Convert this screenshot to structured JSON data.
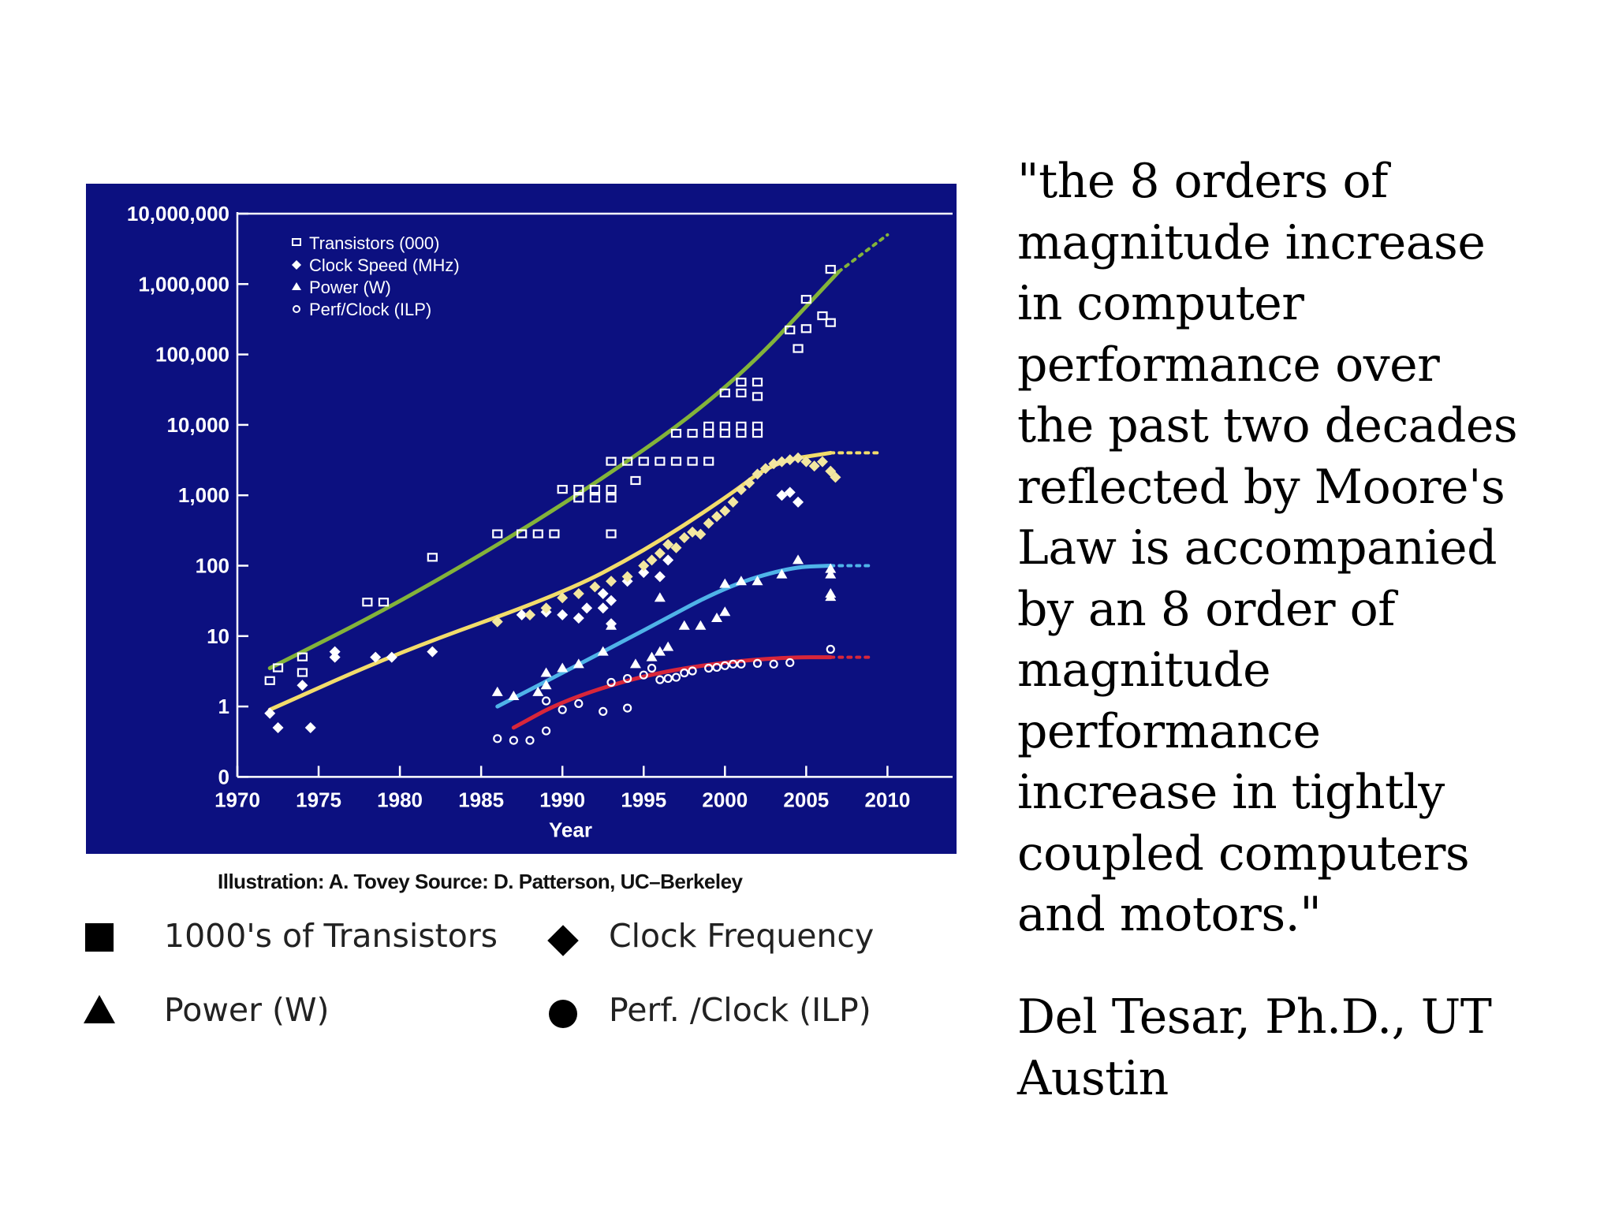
{
  "chart_data": {
    "type": "scatter",
    "title": "",
    "xlabel": "Year",
    "ylabel": "",
    "y_scale": "log",
    "xlim": [
      1970,
      2010
    ],
    "x_ticks": [
      "1970",
      "1975",
      "1980",
      "1985",
      "1990",
      "1995",
      "2000",
      "2005",
      "2010"
    ],
    "y_ticks": [
      "0",
      "1",
      "10",
      "100",
      "1,000",
      "10,000",
      "100,000",
      "1,000,000",
      "10,000,000"
    ],
    "legend": [
      "Transistors (000)",
      "Clock Speed (MHz)",
      "Power (W)",
      "Perf/Clock (ILP)"
    ],
    "legend_position": "top-left",
    "series": [
      {
        "name": "Transistors (000)",
        "marker": "square",
        "color": "#ffffff",
        "points": [
          [
            1972,
            2.3
          ],
          [
            1972.5,
            3.5
          ],
          [
            1974,
            5
          ],
          [
            1974,
            3
          ],
          [
            1978,
            30
          ],
          [
            1979,
            30
          ],
          [
            1982,
            130
          ],
          [
            1986,
            280
          ],
          [
            1987.5,
            280
          ],
          [
            1988.5,
            280
          ],
          [
            1989.5,
            280
          ],
          [
            1990,
            1200
          ],
          [
            1991,
            1200
          ],
          [
            1992,
            1200
          ],
          [
            1993,
            1200
          ],
          [
            1991,
            900
          ],
          [
            1992,
            900
          ],
          [
            1993,
            900
          ],
          [
            1993,
            280
          ],
          [
            1993,
            3000
          ],
          [
            1994,
            3000
          ],
          [
            1995,
            3000
          ],
          [
            1996,
            3000
          ],
          [
            1997,
            3000
          ],
          [
            1998,
            3000
          ],
          [
            1999,
            3000
          ],
          [
            1994.5,
            1600
          ],
          [
            1997,
            7500
          ],
          [
            1998,
            7500
          ],
          [
            1999,
            7500
          ],
          [
            2000,
            7500
          ],
          [
            2001,
            7500
          ],
          [
            2002,
            7500
          ],
          [
            1999,
            9500
          ],
          [
            2000,
            9500
          ],
          [
            2001,
            9500
          ],
          [
            2002,
            9500
          ],
          [
            2000,
            28000
          ],
          [
            2001,
            28000
          ],
          [
            2002,
            25000
          ],
          [
            2001,
            40000
          ],
          [
            2002,
            40000
          ],
          [
            2004,
            220000
          ],
          [
            2004.5,
            120000
          ],
          [
            2005,
            600000
          ],
          [
            2005,
            230000
          ],
          [
            2006,
            350000
          ],
          [
            2006.5,
            280000
          ],
          [
            2006.5,
            1600000
          ]
        ]
      },
      {
        "name": "Clock Speed (MHz)",
        "marker": "diamond",
        "color": "#ffffff",
        "points": [
          [
            1972,
            0.8
          ],
          [
            1972.5,
            0.5
          ],
          [
            1974,
            2
          ],
          [
            1974.5,
            0.5
          ],
          [
            1976,
            5
          ],
          [
            1976,
            6
          ],
          [
            1978.5,
            5
          ],
          [
            1979.5,
            5
          ],
          [
            1982,
            6
          ],
          [
            1987.5,
            20
          ],
          [
            1988,
            20
          ],
          [
            1989,
            22
          ],
          [
            1990,
            20
          ],
          [
            1991,
            18
          ],
          [
            1991.5,
            25
          ],
          [
            1992.5,
            25
          ],
          [
            1993,
            32
          ],
          [
            1992.5,
            40
          ],
          [
            1993,
            15
          ],
          [
            1994,
            60
          ],
          [
            1995,
            80
          ],
          [
            1996,
            70
          ],
          [
            1996.5,
            120
          ],
          [
            2003.5,
            1000
          ],
          [
            2004,
            1100
          ],
          [
            2004.5,
            800
          ]
        ]
      },
      {
        "name": "Clock Speed (MHz) cluster",
        "marker": "diamond",
        "color": "#f3e7a0",
        "points": [
          [
            1986,
            16
          ],
          [
            1988,
            20
          ],
          [
            1989,
            25
          ],
          [
            1990,
            35
          ],
          [
            1991,
            40
          ],
          [
            1992,
            50
          ],
          [
            1993,
            60
          ],
          [
            1994,
            70
          ],
          [
            1995,
            100
          ],
          [
            1995.5,
            120
          ],
          [
            1996,
            150
          ],
          [
            1996.5,
            200
          ],
          [
            1997,
            180
          ],
          [
            1997.5,
            250
          ],
          [
            1998,
            300
          ],
          [
            1998.5,
            280
          ],
          [
            1999,
            400
          ],
          [
            1999.5,
            500
          ],
          [
            2000,
            600
          ],
          [
            2000.5,
            800
          ],
          [
            2001,
            1200
          ],
          [
            2001.5,
            1500
          ],
          [
            2002,
            2000
          ],
          [
            2002.5,
            2400
          ],
          [
            2003,
            2800
          ],
          [
            2003.5,
            3000
          ],
          [
            2004,
            3200
          ],
          [
            2004.5,
            3400
          ],
          [
            2005,
            3000
          ],
          [
            2005.5,
            2600
          ],
          [
            2006,
            3000
          ],
          [
            2006.5,
            2200
          ],
          [
            2006.8,
            1800
          ]
        ]
      },
      {
        "name": "Power (W)",
        "marker": "triangle",
        "color": "#ffffff",
        "points": [
          [
            1986,
            1.6
          ],
          [
            1987,
            1.4
          ],
          [
            1988.5,
            1.6
          ],
          [
            1989,
            2
          ],
          [
            1989,
            3
          ],
          [
            1990,
            3.5
          ],
          [
            1991,
            4
          ],
          [
            1992.5,
            6
          ],
          [
            1993,
            14
          ],
          [
            1994.5,
            4
          ],
          [
            1995.5,
            5
          ],
          [
            1996,
            6
          ],
          [
            1996.5,
            7
          ],
          [
            1996,
            35
          ],
          [
            1997.5,
            14
          ],
          [
            1998.5,
            14
          ],
          [
            1999.5,
            18
          ],
          [
            2000,
            22
          ],
          [
            2000,
            55
          ],
          [
            2001,
            60
          ],
          [
            2002,
            60
          ],
          [
            2003.5,
            75
          ],
          [
            2004.5,
            120
          ],
          [
            2006.5,
            90
          ],
          [
            2006.5,
            75
          ],
          [
            2006.5,
            40
          ],
          [
            2006.5,
            36
          ]
        ]
      },
      {
        "name": "Perf/Clock (ILP)",
        "marker": "circle",
        "color": "#ffffff",
        "points": [
          [
            1986,
            0.35
          ],
          [
            1987,
            0.33
          ],
          [
            1988,
            0.33
          ],
          [
            1989,
            0.45
          ],
          [
            1989,
            1.2
          ],
          [
            1990,
            0.9
          ],
          [
            1991,
            1.1
          ],
          [
            1992.5,
            0.85
          ],
          [
            1993,
            2.2
          ],
          [
            1994,
            0.95
          ],
          [
            1994,
            2.5
          ],
          [
            1995,
            2.8
          ],
          [
            1995.5,
            3.5
          ],
          [
            1996,
            2.4
          ],
          [
            1996.5,
            2.5
          ],
          [
            1997,
            2.6
          ],
          [
            1997.5,
            3
          ],
          [
            1998,
            3.2
          ],
          [
            1999,
            3.5
          ],
          [
            1999.5,
            3.6
          ],
          [
            2000,
            3.8
          ],
          [
            2000.5,
            4
          ],
          [
            2001,
            4
          ],
          [
            2002,
            4.1
          ],
          [
            2003,
            4
          ],
          [
            2004,
            4.2
          ],
          [
            2006.5,
            6.5
          ]
        ]
      }
    ],
    "trend_lines": [
      {
        "name": "Transistors trend",
        "color": "#83b33a",
        "points": [
          [
            1972,
            3.5
          ],
          [
            1980,
            30
          ],
          [
            1990,
            700
          ],
          [
            2000,
            28000
          ],
          [
            2007,
            1500000
          ]
        ],
        "projection": [
          [
            2007,
            1500000
          ],
          [
            2010,
            5000000
          ]
        ]
      },
      {
        "name": "Clock trend",
        "color": "#f2dc6b",
        "points": [
          [
            1972,
            0.9
          ],
          [
            1980,
            6
          ],
          [
            1990,
            40
          ],
          [
            1995,
            160
          ],
          [
            2000,
            900
          ],
          [
            2003,
            3000
          ],
          [
            2006.5,
            4000
          ]
        ],
        "projection": [
          [
            2006.5,
            4000
          ],
          [
            2009.5,
            4000
          ]
        ]
      },
      {
        "name": "Power trend",
        "color": "#4fb3e8",
        "points": [
          [
            1986,
            1
          ],
          [
            1990,
            3
          ],
          [
            1995,
            12
          ],
          [
            2000,
            50
          ],
          [
            2004,
            95
          ],
          [
            2006.5,
            100
          ]
        ],
        "projection": [
          [
            2006.5,
            100
          ],
          [
            2009,
            100
          ]
        ]
      },
      {
        "name": "ILP trend",
        "color": "#d8263a",
        "points": [
          [
            1987,
            0.5
          ],
          [
            1990,
            1.2
          ],
          [
            1995,
            2.8
          ],
          [
            2000,
            4.3
          ],
          [
            2004,
            5
          ],
          [
            2006.5,
            5
          ]
        ],
        "projection": [
          [
            2006.5,
            5
          ],
          [
            2009,
            5
          ]
        ]
      }
    ]
  },
  "credit": "Illustration: A. Tovey Source: D. Patterson, UC–Berkeley",
  "key": {
    "transistors": "1000's of Transistors",
    "clock": "Clock Frequency",
    "power": "Power (W)",
    "ilp": "Perf. /Clock (ILP)"
  },
  "quote": "\"the 8 orders of\nmagnitude increase\nin computer\nperformance over\nthe past two decades\nreflected by Moore's\nLaw is accompanied\nby an 8 order of\nmagnitude\nperformance\nincrease in tightly\ncoupled computers\nand motors.\"",
  "attribution": "Del Tesar, Ph.D., UT\nAustin"
}
